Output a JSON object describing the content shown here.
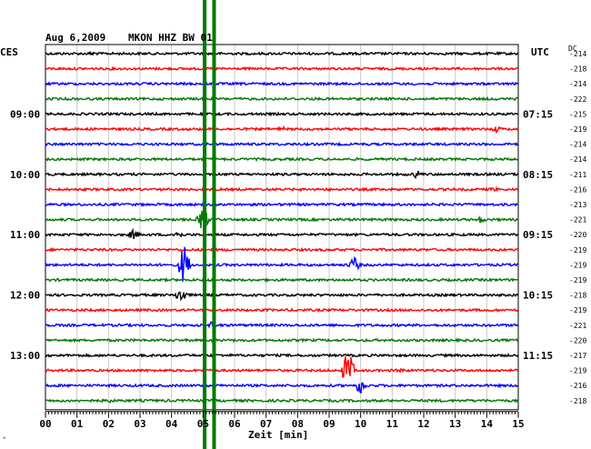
{
  "header": {
    "date": "Aug 6,2009",
    "station": "MKON HHZ BW 01",
    "left_tz": "CES",
    "right_tz": "UTC",
    "dc_label": "DC"
  },
  "footer": {
    "xlabel": "Zeit [min]",
    "corner_mark": "ˆ"
  },
  "colors": {
    "black": "#000000",
    "red": "#ff0000",
    "blue": "#0000ff",
    "green": "#007700",
    "grid": "#c8c8c8",
    "marker": "#007a00"
  },
  "chart_data": {
    "type": "line",
    "title": "Aug 6,2009   MKON HHZ BW 01",
    "xlabel": "Zeit [min]",
    "xlim": [
      0,
      15
    ],
    "x_ticks": [
      "00",
      "01",
      "02",
      "03",
      "04",
      "05",
      "06",
      "07",
      "08",
      "09",
      "10",
      "11",
      "12",
      "13",
      "14",
      "15"
    ],
    "trace_color_cycle": [
      "black",
      "red",
      "blue",
      "green"
    ],
    "left_hour_labels": [
      {
        "trace_index": 4,
        "text": "09:00"
      },
      {
        "trace_index": 8,
        "text": "10:00"
      },
      {
        "trace_index": 12,
        "text": "11:00"
      },
      {
        "trace_index": 16,
        "text": "12:00"
      },
      {
        "trace_index": 20,
        "text": "13:00"
      }
    ],
    "right_hour_labels": [
      {
        "trace_index": 4,
        "text": "07:15"
      },
      {
        "trace_index": 8,
        "text": "08:15"
      },
      {
        "trace_index": 12,
        "text": "09:15"
      },
      {
        "trace_index": 16,
        "text": "10:15"
      },
      {
        "trace_index": 20,
        "text": "11:15"
      }
    ],
    "dc_offsets": [
      "-214",
      "-218",
      "-214",
      "-222",
      "-215",
      "-219",
      "-214",
      "-214",
      "-211",
      "-216",
      "-213",
      "-221",
      "-220",
      "-219",
      "-219",
      "-219",
      "-218",
      "-219",
      "-221",
      "-220",
      "-217",
      "-219",
      "-216",
      "-218"
    ],
    "vertical_markers_min": [
      5.05,
      5.35
    ],
    "events": [
      {
        "trace_index": 0,
        "x_min": 1.5,
        "amp": 3
      },
      {
        "trace_index": 5,
        "x_min": 7.5,
        "amp": 3
      },
      {
        "trace_index": 5,
        "x_min": 14.3,
        "amp": 4
      },
      {
        "trace_index": 8,
        "x_min": 11.8,
        "amp": 5
      },
      {
        "trace_index": 9,
        "x_min": 14.2,
        "amp": 3
      },
      {
        "trace_index": 11,
        "x_min": 5.0,
        "amp": 14
      },
      {
        "trace_index": 11,
        "x_min": 13.8,
        "amp": 4
      },
      {
        "trace_index": 12,
        "x_min": 2.8,
        "amp": 6
      },
      {
        "trace_index": 12,
        "x_min": 4.2,
        "amp": 5
      },
      {
        "trace_index": 14,
        "x_min": 9.8,
        "amp": 9
      },
      {
        "trace_index": 14,
        "x_min": 4.4,
        "amp": 24
      },
      {
        "trace_index": 16,
        "x_min": 4.3,
        "amp": 10
      },
      {
        "trace_index": 18,
        "x_min": 5.3,
        "amp": 5
      },
      {
        "trace_index": 21,
        "x_min": 9.6,
        "amp": 24
      },
      {
        "trace_index": 21,
        "x_min": 11.3,
        "amp": 3
      },
      {
        "trace_index": 22,
        "x_min": 10.0,
        "amp": 10
      },
      {
        "trace_index": 23,
        "x_min": 2.0,
        "amp": 3
      }
    ]
  }
}
